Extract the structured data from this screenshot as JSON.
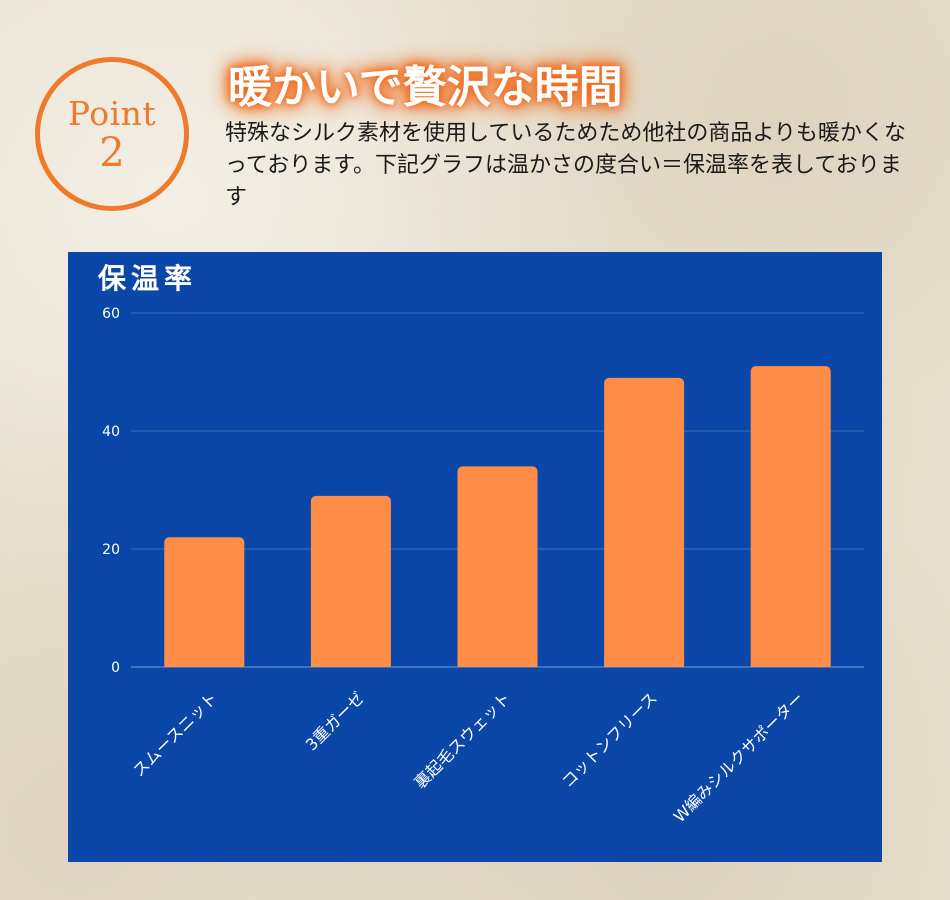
{
  "badge": {
    "label": "Point",
    "number": "2"
  },
  "headline": "暖かいで贅沢な時間",
  "lead": "特殊なシルク素材を使用しているためため他社の商品よりも暖かくなっております。下記グラフは温かさの度合い＝保温率を表しております",
  "colors": {
    "bar": "#ff8c47",
    "card": "#0a47a8",
    "accent": "#f07a2c"
  },
  "chart_data": {
    "type": "bar",
    "title": "保温率",
    "xlabel": "",
    "ylabel": "",
    "categories": [
      "スムースニット",
      "3重ガーゼ",
      "裏起毛スウェット",
      "コットンフリース",
      "W編みシルクサポーター"
    ],
    "values": [
      22,
      29,
      34,
      49,
      51
    ],
    "ylim": [
      0,
      60
    ],
    "yticks": [
      0,
      20,
      40,
      60
    ],
    "grid": true,
    "legend": "none"
  }
}
